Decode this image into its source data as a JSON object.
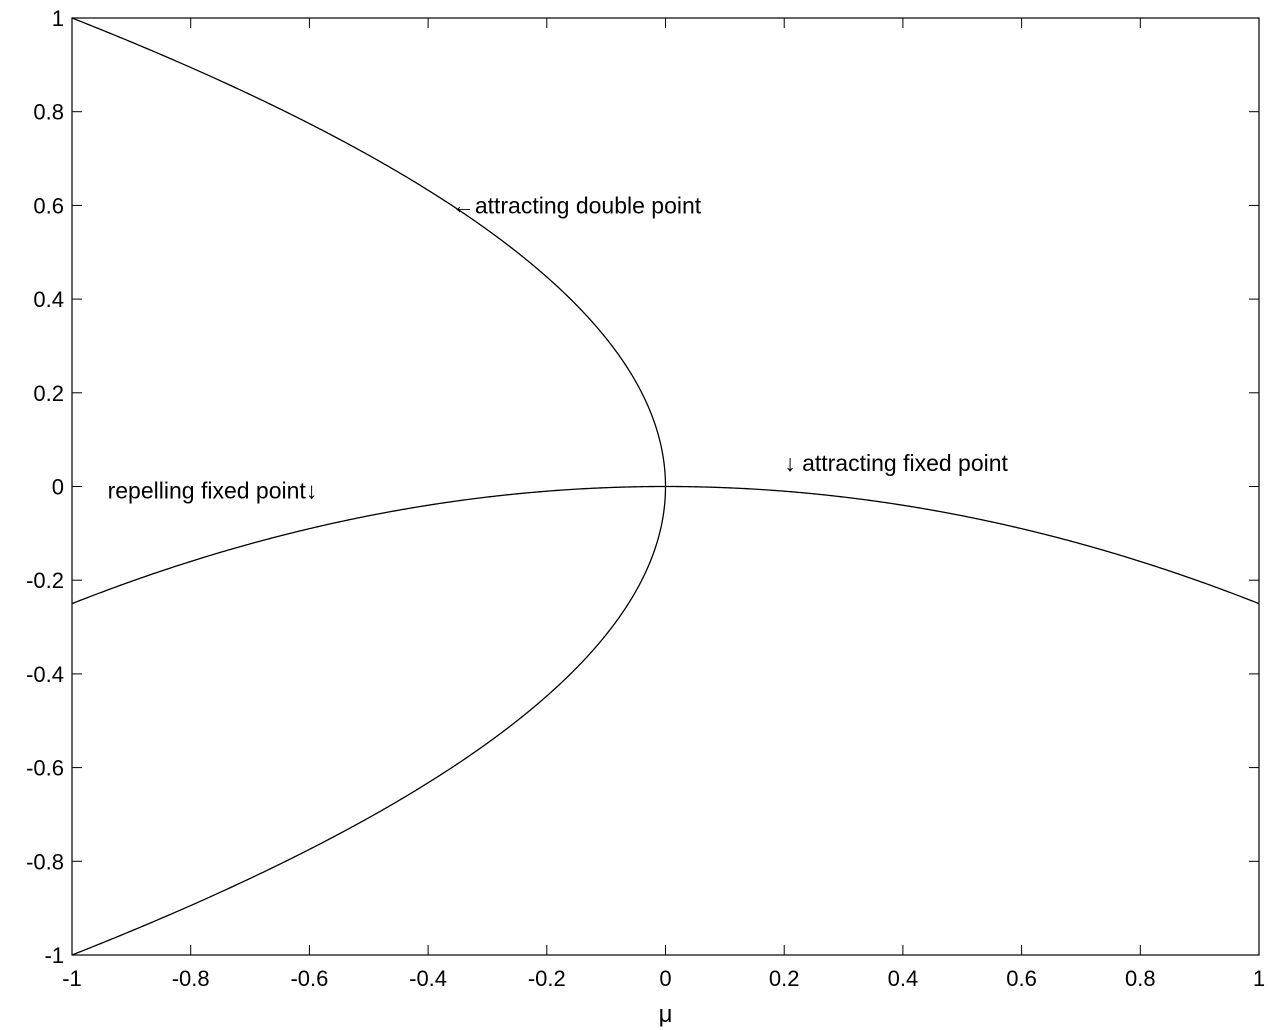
{
  "chart_data": {
    "type": "line",
    "title": "",
    "xlabel": "μ",
    "ylabel": "",
    "xlim": [
      -1,
      1
    ],
    "ylim": [
      -1,
      1
    ],
    "grid": false,
    "x_ticks": [
      -1,
      -0.8,
      -0.6,
      -0.4,
      -0.2,
      0,
      0.2,
      0.4,
      0.6,
      0.8,
      1
    ],
    "x_tick_labels": [
      "-1",
      "-0.8",
      "-0.6",
      "-0.4",
      "-0.2",
      "0",
      "0.2",
      "0.4",
      "0.6",
      "0.8",
      "1"
    ],
    "y_ticks": [
      1,
      0.8,
      0.6,
      0.4,
      0.2,
      0,
      -0.2,
      -0.4,
      -0.6,
      -0.8,
      -1
    ],
    "y_tick_labels": [
      "1",
      "0.8",
      "0.6",
      "0.4",
      "0.2",
      "0",
      "-0.2",
      "-0.4",
      "-0.6",
      "-0.8",
      "-1"
    ],
    "series": [
      {
        "x": [
          -1,
          -0.9,
          -0.8,
          -0.7,
          -0.6,
          -0.5,
          -0.4,
          -0.3,
          -0.2,
          -0.1,
          0,
          0.1,
          0.2,
          0.3,
          0.4,
          0.5,
          0.6,
          0.7,
          0.8,
          0.9,
          1
        ],
        "y": [
          -0.25,
          -0.2025,
          -0.16,
          -0.1225,
          -0.09,
          -0.0625,
          -0.04,
          -0.0225,
          -0.01,
          -0.0025,
          0,
          -0.0025,
          -0.01,
          -0.0225,
          -0.04,
          -0.0625,
          -0.09,
          -0.1225,
          -0.16,
          -0.2025,
          -0.25
        ]
      },
      {
        "x": [
          -1,
          -0.9,
          -0.8,
          -0.7,
          -0.6,
          -0.5,
          -0.4,
          -0.3,
          -0.2,
          -0.1,
          -0.05,
          0
        ],
        "y": [
          1,
          0.9487,
          0.8944,
          0.8367,
          0.7746,
          0.7071,
          0.6325,
          0.5477,
          0.4472,
          0.3162,
          0.2236,
          0
        ]
      },
      {
        "x": [
          -1,
          -0.9,
          -0.8,
          -0.7,
          -0.6,
          -0.5,
          -0.4,
          -0.3,
          -0.2,
          -0.1,
          -0.05,
          0
        ],
        "y": [
          -1,
          -0.9487,
          -0.8944,
          -0.8367,
          -0.7746,
          -0.7071,
          -0.6325,
          -0.5477,
          -0.4472,
          -0.3162,
          -0.2236,
          0
        ]
      }
    ],
    "annotations": [
      {
        "text": "←attracting double point",
        "x": -0.36,
        "y": 0.6
      },
      {
        "text": "repelling fixed point↓",
        "x": -0.94,
        "y": 0
      },
      {
        "text": "↓ attracting fixed point",
        "x": 0.2,
        "y": 0.05
      }
    ]
  }
}
